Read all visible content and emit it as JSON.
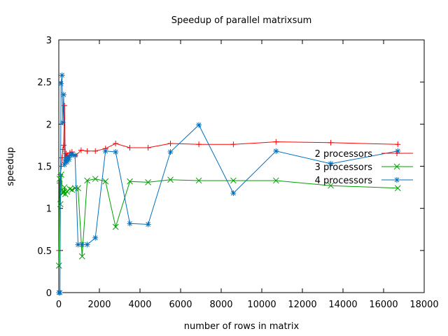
{
  "chart_data": {
    "type": "line",
    "title": "Speedup of parallel matrixsum",
    "xlabel": "number of rows in matrix",
    "ylabel": "speedup",
    "xlim": [
      0,
      18000
    ],
    "ylim": [
      0,
      3
    ],
    "xticks": [
      "0",
      "2000",
      "4000",
      "6000",
      "8000",
      "10000",
      "12000",
      "14000",
      "16000",
      "18000"
    ],
    "yticks": [
      "0",
      "0.5",
      "1",
      "1.5",
      "2",
      "2.5",
      "3"
    ],
    "grid": false,
    "legend_position": "right",
    "series": [
      {
        "name": "2 processors",
        "color": "#ff0000",
        "marker": "plus",
        "x": [
          10,
          40,
          80,
          120,
          160,
          200,
          240,
          280,
          320,
          360,
          400,
          440,
          480,
          550,
          650,
          800,
          1100,
          1400,
          1800,
          2300,
          2800,
          3500,
          4400,
          5500,
          6900,
          8600,
          10700,
          13400,
          16700
        ],
        "y": [
          0.5,
          1.3,
          1.4,
          1.5,
          1.6,
          1.7,
          1.75,
          2.22,
          1.6,
          1.65,
          1.62,
          1.63,
          1.6,
          1.66,
          1.67,
          1.62,
          1.69,
          1.68,
          1.68,
          1.71,
          1.77,
          1.72,
          1.72,
          1.77,
          1.76,
          1.76,
          1.79,
          1.78,
          1.76
        ]
      },
      {
        "name": "3 processors",
        "color": "#00a000",
        "marker": "cross",
        "x": [
          10,
          40,
          80,
          120,
          160,
          200,
          240,
          280,
          320,
          400,
          550,
          650,
          800,
          950,
          1150,
          1400,
          1800,
          2300,
          2800,
          3500,
          4400,
          5500,
          6900,
          8600,
          10700,
          13400,
          16700
        ],
        "y": [
          0.32,
          1.35,
          1.05,
          1.4,
          1.22,
          1.18,
          1.2,
          1.25,
          1.17,
          1.2,
          1.23,
          1.22,
          1.24,
          1.24,
          0.43,
          1.33,
          1.35,
          1.32,
          0.78,
          1.32,
          1.31,
          1.34,
          1.33,
          1.33,
          1.33,
          1.27,
          1.24
        ]
      },
      {
        "name": "4 processors",
        "color": "#0070c0",
        "marker": "star",
        "x": [
          10,
          60,
          110,
          160,
          200,
          240,
          280,
          320,
          360,
          400,
          440,
          500,
          560,
          640,
          800,
          950,
          1150,
          1400,
          1800,
          2300,
          2800,
          3500,
          4400,
          5500,
          6900,
          8600,
          10700,
          13400,
          16700
        ],
        "y": [
          0.0,
          0.0,
          2.48,
          2.58,
          2.02,
          2.35,
          1.52,
          1.55,
          1.58,
          1.55,
          1.6,
          1.58,
          1.63,
          1.64,
          1.63,
          0.57,
          0.57,
          0.57,
          0.65,
          1.68,
          1.67,
          0.82,
          0.81,
          1.67,
          1.99,
          1.18,
          1.68,
          1.53,
          1.68
        ]
      }
    ]
  }
}
